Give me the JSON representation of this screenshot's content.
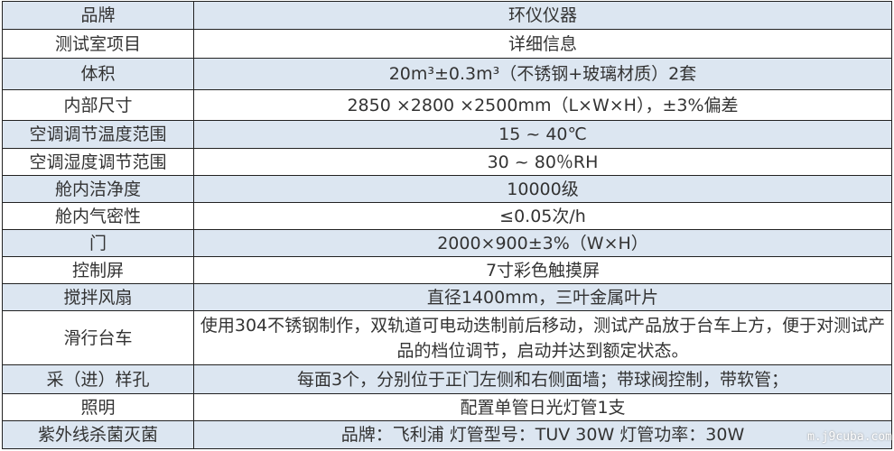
{
  "rows": [
    {
      "label": "品牌",
      "value": "环仪仪器"
    },
    {
      "label": "测试室项目",
      "value": "详细信息"
    },
    {
      "label": "体积",
      "value": "20m³±0.3m³（不锈钢+玻璃材质）2套"
    },
    {
      "label": "内部尺寸",
      "value": "2850 ×2800 ×2500mm（L×W×H），±3%偏差"
    },
    {
      "label": "空调调节温度范围",
      "value": "15 ~ 40℃"
    },
    {
      "label": "空调湿度调节范围",
      "value": "30 ~ 80％RH"
    },
    {
      "label": "舱内洁净度",
      "value": "10000级"
    },
    {
      "label": "舱内气密性",
      "value": "≤0.05次/h"
    },
    {
      "label": "门",
      "value": "2000×900±3%（W×H）"
    },
    {
      "label": "控制屏",
      "value": "7寸彩色触摸屏"
    },
    {
      "label": "搅拌风扇",
      "value": "直径1400mm，三叶金属叶片"
    },
    {
      "label": "滑行台车",
      "value": "使用304不锈钢制作，双轨道可电动迭制前后移动，测试产品放于台车上方，便于对测试产品的档位调节，启动并达到额定状态。"
    },
    {
      "label": "采（进）样孔",
      "value": "每面3个，分别位于正门左侧和右侧面墙；带球阀控制，带软管；"
    },
    {
      "label": "照明",
      "value": "配置单管日光灯管1支"
    },
    {
      "label": "紫外线杀菌灭菌",
      "value": "品牌：飞利浦 灯管型号：TUV 30W 灯管功率：30W"
    }
  ],
  "watermark": "m.j9cuba.com",
  "colors": {
    "band": "#dce6f1"
  }
}
